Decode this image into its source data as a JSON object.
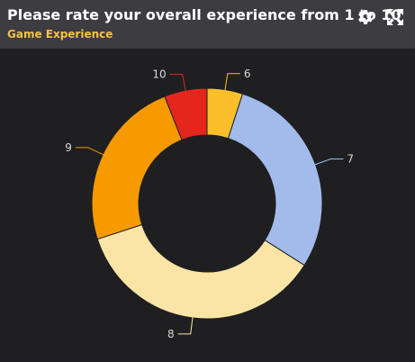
{
  "header": {
    "title": "Please rate your overall experience from 1 to 10",
    "subtitle": "Game Experience",
    "icons": [
      "gear-icon",
      "expand-icon"
    ]
  },
  "colors": {
    "header_bg": "#3d3c40",
    "panel_bg": "#1f1f21",
    "subtitle": "#f5c242"
  },
  "chart_data": {
    "type": "pie",
    "donut": true,
    "categories": [
      "6",
      "7",
      "8",
      "9",
      "10"
    ],
    "values": [
      5,
      29,
      36,
      24,
      6
    ],
    "colors": [
      "#fbbf2c",
      "#a3bbeb",
      "#fbe5a6",
      "#f59a00",
      "#e5261c"
    ],
    "start_angle_deg": 0,
    "direction": "clockwise"
  }
}
